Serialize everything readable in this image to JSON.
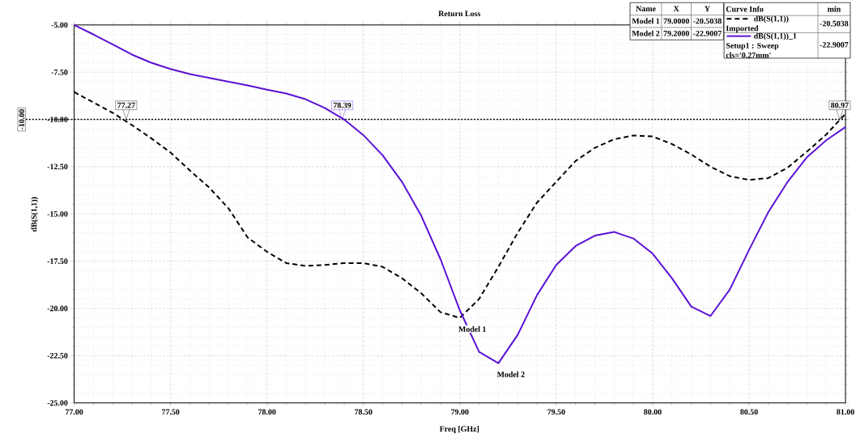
{
  "chart_data": {
    "type": "line",
    "title": "Return Loss",
    "xlabel": "Freq [GHz]",
    "ylabel": "dB(S(1,1))",
    "legend_title": "Curve Info",
    "xlim": [
      77,
      81
    ],
    "ylim": [
      -25,
      -5
    ],
    "xticks": [
      {
        "value": 77,
        "label": "77.00"
      },
      {
        "value": 77.5,
        "label": "77.50"
      },
      {
        "value": 78,
        "label": "78.00"
      },
      {
        "value": 78.5,
        "label": "78.50"
      },
      {
        "value": 79,
        "label": "79.00"
      },
      {
        "value": 79.5,
        "label": "79.50"
      },
      {
        "value": 80,
        "label": "80.00"
      },
      {
        "value": 80.5,
        "label": "80.50"
      },
      {
        "value": 81,
        "label": "81.00"
      }
    ],
    "yticks": [
      {
        "value": -25,
        "label": "-25.00"
      },
      {
        "value": -22.5,
        "label": "-22.50"
      },
      {
        "value": -20,
        "label": "-20.00"
      },
      {
        "value": -17.5,
        "label": "-17.50"
      },
      {
        "value": -15,
        "label": "-15.00"
      },
      {
        "value": -12.5,
        "label": "-12.50"
      },
      {
        "value": -10,
        "label": "-10.00"
      },
      {
        "value": -7.5,
        "label": "-7.50"
      },
      {
        "value": -5,
        "label": "-5.00"
      }
    ],
    "grid": true,
    "legend": "top right",
    "marker": "none",
    "x": [
      77.0,
      77.1,
      77.2,
      77.3,
      77.4,
      77.5,
      77.6,
      77.7,
      77.8,
      77.9,
      78.0,
      78.1,
      78.2,
      78.3,
      78.4,
      78.5,
      78.6,
      78.7,
      78.8,
      78.9,
      79.0,
      79.1,
      79.2,
      79.3,
      79.4,
      79.5,
      79.6,
      79.7,
      79.8,
      79.9,
      80.0,
      80.1,
      80.2,
      80.3,
      80.4,
      80.5,
      80.6,
      80.7,
      80.8,
      80.9,
      81.0
    ],
    "series": [
      {
        "name": "dB(S(1,1)) Imported",
        "color": "#000000",
        "line_style": "dashed",
        "values": [
          -8.55,
          -9.1,
          -9.65,
          -10.3,
          -11.0,
          -11.75,
          -12.7,
          -13.6,
          -14.7,
          -16.25,
          -17.0,
          -17.6,
          -17.75,
          -17.7,
          -17.6,
          -17.6,
          -17.8,
          -18.4,
          -19.2,
          -20.2,
          -20.5,
          -19.5,
          -17.8,
          -16.0,
          -14.4,
          -13.3,
          -12.2,
          -11.5,
          -11.05,
          -10.85,
          -10.9,
          -11.3,
          -11.85,
          -12.5,
          -13.0,
          -13.2,
          -13.1,
          -12.55,
          -11.7,
          -10.8,
          -9.7
        ]
      },
      {
        "name": "dB(S(1,1))_1 Setup1 : Sweep cls='0.27mm'",
        "color": "#5b10d6",
        "line_style": "solid",
        "values": [
          -5.0,
          -5.5,
          -6.03,
          -6.57,
          -7.0,
          -7.33,
          -7.6,
          -7.8,
          -8.0,
          -8.2,
          -8.42,
          -8.63,
          -8.93,
          -9.39,
          -10.0,
          -10.83,
          -11.9,
          -13.3,
          -15.1,
          -17.4,
          -20.1,
          -22.3,
          -22.9,
          -21.4,
          -19.3,
          -17.7,
          -16.7,
          -16.15,
          -15.95,
          -16.3,
          -17.1,
          -18.4,
          -19.9,
          -20.4,
          -19.0,
          -16.9,
          -14.9,
          -13.3,
          -12.0,
          -11.1,
          -10.4
        ]
      }
    ],
    "ref_lines": [
      {
        "axis": "y",
        "value": -10,
        "label": "-10.00",
        "color": "#000000",
        "line_style": "dotted"
      }
    ],
    "annotations": [
      "Name",
      "X",
      "Y",
      "Model 1",
      "79.0000",
      "-20.5038",
      "Model 2",
      "79.2000",
      "-22.9007",
      "min",
      "-20.5038",
      "-22.9007",
      {
        "text": "77.27",
        "x": 77.27,
        "y": -10
      },
      {
        "text": "78.39",
        "x": 78.39,
        "y": -10
      },
      {
        "text": "80.97",
        "x": 80.97,
        "y": -10
      },
      {
        "text": "Model 1",
        "x": 79.0,
        "y": -20.5038
      },
      {
        "text": "Model 2",
        "x": 79.2,
        "y": -22.9007
      }
    ]
  }
}
